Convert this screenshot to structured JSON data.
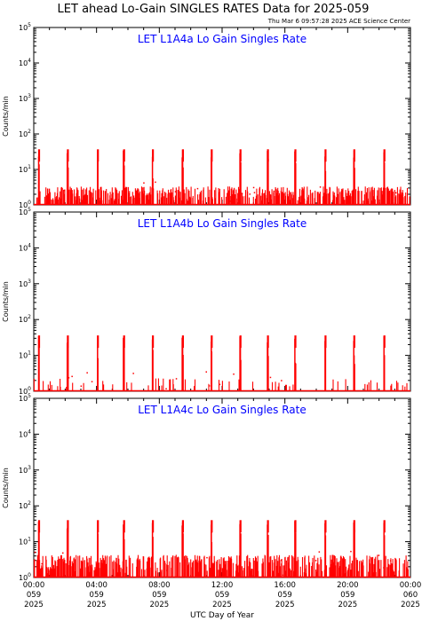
{
  "header": {
    "title": "LET ahead Lo-Gain SINGLES RATES Data for 2025-059",
    "timestamp": "Thu Mar  6 09:57:28 2025 ACE Science Center"
  },
  "colors": {
    "trace": "#ff0000",
    "panel_title": "#0000ff",
    "axes": "#000000"
  },
  "chart_data": [
    {
      "type": "line",
      "title": "LET L1A4a Lo Gain Singles Rate",
      "ylabel": "Counts/min",
      "yscale": "log",
      "ylim": [
        1,
        100000
      ],
      "ytick_labels": [
        {
          "base": "10",
          "exp": "0"
        },
        {
          "base": "10",
          "exp": "1"
        },
        {
          "base": "10",
          "exp": "2"
        },
        {
          "base": "10",
          "exp": "3"
        },
        {
          "base": "10",
          "exp": "4"
        },
        {
          "base": "10",
          "exp": "5"
        }
      ],
      "xlim": [
        0,
        1440
      ],
      "spike_minutes": [
        20,
        130,
        245,
        345,
        455,
        570,
        680,
        790,
        895,
        1000,
        1115,
        1225,
        1340
      ],
      "spike_peak": 37,
      "baseline": 1,
      "typical_max": 2
    },
    {
      "type": "line",
      "title": "LET L1A4b Lo Gain Singles Rate",
      "ylabel": "Counts/min",
      "yscale": "log",
      "ylim": [
        1,
        100000
      ],
      "ytick_labels": [
        {
          "base": "10",
          "exp": "0"
        },
        {
          "base": "10",
          "exp": "1"
        },
        {
          "base": "10",
          "exp": "2"
        },
        {
          "base": "10",
          "exp": "3"
        },
        {
          "base": "10",
          "exp": "4"
        },
        {
          "base": "10",
          "exp": "5"
        }
      ],
      "xlim": [
        0,
        1440
      ],
      "spike_minutes": [
        20,
        130,
        245,
        345,
        455,
        570,
        680,
        790,
        895,
        1000,
        1115,
        1225,
        1340
      ],
      "spike_peak": 36,
      "baseline": 1,
      "typical_max": 1
    },
    {
      "type": "line",
      "title": "LET L1A4c Lo Gain Singles Rate",
      "ylabel": "Counts/min",
      "yscale": "log",
      "ylim": [
        1,
        100000
      ],
      "ytick_labels": [
        {
          "base": "10",
          "exp": "0"
        },
        {
          "base": "10",
          "exp": "1"
        },
        {
          "base": "10",
          "exp": "2"
        },
        {
          "base": "10",
          "exp": "3"
        },
        {
          "base": "10",
          "exp": "4"
        },
        {
          "base": "10",
          "exp": "5"
        }
      ],
      "xlim": [
        0,
        1440
      ],
      "spike_minutes": [
        20,
        130,
        245,
        345,
        455,
        570,
        680,
        790,
        895,
        1000,
        1115,
        1225,
        1340
      ],
      "spike_peak": 40,
      "baseline": 1,
      "typical_max": 3
    }
  ],
  "x_axis": {
    "label": "UTC Day of Year",
    "ticks": [
      {
        "minute": 0,
        "time": "00:00",
        "doy": "059",
        "year": "2025"
      },
      {
        "minute": 240,
        "time": "04:00",
        "doy": "059",
        "year": "2025"
      },
      {
        "minute": 480,
        "time": "08:00",
        "doy": "059",
        "year": "2025"
      },
      {
        "minute": 720,
        "time": "12:00",
        "doy": "059",
        "year": "2025"
      },
      {
        "minute": 960,
        "time": "16:00",
        "doy": "059",
        "year": "2025"
      },
      {
        "minute": 1200,
        "time": "20:00",
        "doy": "059",
        "year": "2025"
      },
      {
        "minute": 1440,
        "time": "00:00",
        "doy": "060",
        "year": "2025"
      }
    ]
  }
}
